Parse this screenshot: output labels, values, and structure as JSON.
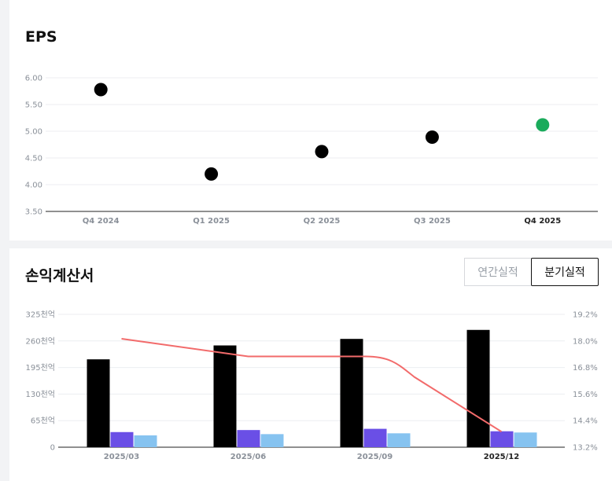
{
  "eps_card": {
    "title": "EPS"
  },
  "income_card": {
    "title": "손익계산서",
    "toggle": {
      "annual_label": "연간실적",
      "quarterly_label": "분기실적",
      "selected": "quarterly"
    }
  },
  "chart_data": [
    {
      "type": "scatter",
      "title": "EPS",
      "categories": [
        "Q4 2024",
        "Q1 2025",
        "Q2 2025",
        "Q3 2025",
        "Q4 2025"
      ],
      "values": [
        5.78,
        4.2,
        4.62,
        4.89,
        5.12
      ],
      "highlight_index": 4,
      "point_color": "#000000",
      "highlight_color": "#1aab5b",
      "ylim": [
        3.5,
        6.0
      ],
      "yticks": [
        "6.00",
        "5.50",
        "5.00",
        "4.50",
        "4.00",
        "3.50"
      ],
      "grid": true
    },
    {
      "type": "bar",
      "title": "손익계산서",
      "categories": [
        "2025/03",
        "2025/06",
        "2025/09",
        "2025/12"
      ],
      "highlight_index": 3,
      "ylim": [
        0,
        325
      ],
      "yticks": [
        "325천억",
        "260천억",
        "195천억",
        "130천억",
        "65천억",
        "0"
      ],
      "y2lim": [
        13.2,
        19.2
      ],
      "y2ticks": [
        "19.2%",
        "18.0%",
        "16.8%",
        "15.6%",
        "14.4%",
        "13.2%"
      ],
      "series": [
        {
          "values": [
            215,
            249,
            265,
            287
          ],
          "color": "#000000"
        },
        {
          "values": [
            37,
            42,
            45,
            39
          ],
          "color": "#6a4fe6"
        },
        {
          "values": [
            29,
            32,
            34,
            36
          ],
          "color": "#86c3f0"
        }
      ],
      "line": {
        "values": [
          18.1,
          17.3,
          17.3,
          13.9
        ],
        "color": "#f26b6b",
        "axis": "right"
      },
      "grid": true
    }
  ]
}
